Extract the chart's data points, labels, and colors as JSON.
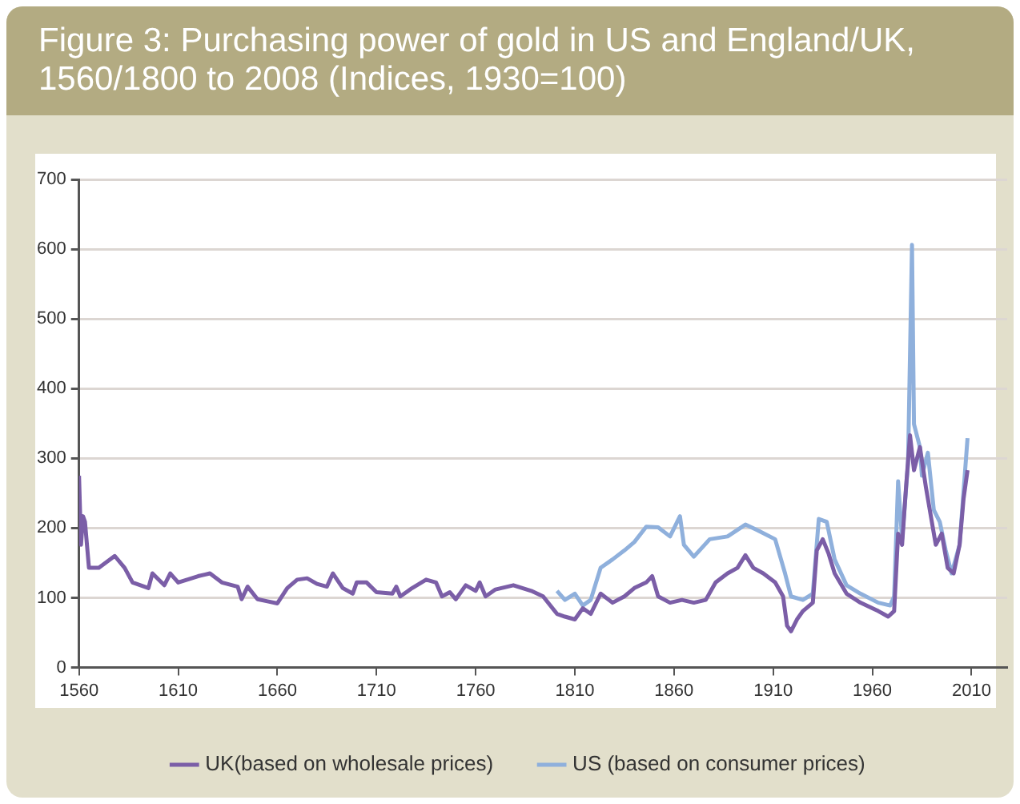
{
  "chart_data": {
    "type": "line",
    "title": "Figure 3: Purchasing power of gold in US and England/UK, 1560/1800 to 2008 (Indices, 1930=100)",
    "xlim": [
      1560,
      2028
    ],
    "xticks": [
      1560,
      1610,
      1660,
      1710,
      1760,
      1810,
      1860,
      1910,
      1960,
      2010
    ],
    "ylim": [
      0,
      700
    ],
    "yticks": [
      0,
      100,
      200,
      300,
      400,
      500,
      600,
      700
    ],
    "grid": "y",
    "legend": "bottom",
    "marker": "none",
    "line_style": "solid",
    "series": [
      {
        "name": "UK(based on wholesale prices)",
        "color": "#7b5ea7",
        "x": [
          1560,
          1561,
          1562,
          1563,
          1565,
          1570,
          1578,
          1583,
          1587,
          1595,
          1597,
          1603,
          1606,
          1610,
          1620,
          1626,
          1632,
          1640,
          1642,
          1645,
          1650,
          1655,
          1660,
          1665,
          1670,
          1675,
          1680,
          1685,
          1688,
          1693,
          1698,
          1700,
          1705,
          1710,
          1718,
          1720,
          1722,
          1728,
          1735,
          1740,
          1743,
          1747,
          1750,
          1755,
          1760,
          1762,
          1765,
          1770,
          1779,
          1788,
          1794,
          1801,
          1805,
          1810,
          1814,
          1818,
          1823,
          1829,
          1835,
          1840,
          1846,
          1849,
          1852,
          1858,
          1864,
          1870,
          1876,
          1881,
          1887,
          1892,
          1896,
          1900,
          1905,
          1911,
          1915,
          1917,
          1919,
          1922,
          1925,
          1930,
          1932,
          1935,
          1938,
          1941,
          1947,
          1954,
          1963,
          1968,
          1971,
          1973,
          1975,
          1977,
          1979,
          1981,
          1984,
          1987,
          1990,
          1992,
          1995,
          1998,
          2001,
          2004,
          2006,
          2008
        ],
        "values": [
          275,
          176,
          217,
          209,
          143,
          143,
          160,
          143,
          122,
          114,
          135,
          118,
          135,
          122,
          131,
          135,
          122,
          116,
          98,
          116,
          98,
          95,
          92,
          114,
          126,
          128,
          120,
          116,
          135,
          114,
          106,
          122,
          122,
          108,
          106,
          116,
          102,
          114,
          126,
          122,
          102,
          108,
          98,
          118,
          110,
          122,
          102,
          112,
          118,
          110,
          102,
          77,
          73,
          69,
          85,
          77,
          106,
          93,
          102,
          114,
          122,
          131,
          102,
          93,
          97,
          93,
          97,
          122,
          135,
          143,
          161,
          143,
          135,
          122,
          102,
          60,
          52,
          69,
          81,
          93,
          168,
          184,
          163,
          135,
          106,
          93,
          81,
          73,
          81,
          192,
          176,
          259,
          333,
          283,
          316,
          259,
          209,
          176,
          192,
          143,
          135,
          176,
          242,
          283
        ]
      },
      {
        "name": "US (based on consumer prices)",
        "color": "#8fb0dc",
        "x": [
          1801,
          1805,
          1810,
          1814,
          1818,
          1823,
          1829,
          1835,
          1840,
          1846,
          1852,
          1858,
          1863,
          1865,
          1870,
          1878,
          1887,
          1896,
          1902,
          1911,
          1916,
          1919,
          1925,
          1930,
          1933,
          1937,
          1941,
          1947,
          1954,
          1963,
          1969,
          1971,
          1973,
          1975,
          1978,
          1980,
          1981,
          1984,
          1985,
          1988,
          1991,
          1994,
          1997,
          2000,
          2004,
          2008
        ],
        "values": [
          110,
          97,
          106,
          89,
          97,
          143,
          155,
          168,
          180,
          202,
          201,
          188,
          217,
          176,
          159,
          184,
          188,
          205,
          197,
          184,
          135,
          102,
          97,
          106,
          213,
          209,
          155,
          118,
          106,
          93,
          89,
          102,
          267,
          184,
          292,
          606,
          349,
          316,
          275,
          308,
          226,
          209,
          168,
          135,
          176,
          329
        ]
      }
    ]
  }
}
